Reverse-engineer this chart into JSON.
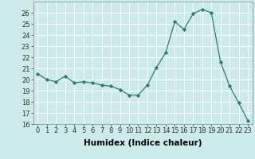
{
  "x": [
    0,
    1,
    2,
    3,
    4,
    5,
    6,
    7,
    8,
    9,
    10,
    11,
    12,
    13,
    14,
    15,
    16,
    17,
    18,
    19,
    20,
    21,
    22,
    23
  ],
  "y": [
    20.5,
    20.0,
    19.8,
    20.3,
    19.7,
    19.8,
    19.7,
    19.5,
    19.4,
    19.1,
    18.6,
    18.6,
    19.5,
    21.1,
    22.4,
    25.2,
    24.5,
    25.9,
    26.3,
    26.0,
    21.6,
    19.4,
    17.9,
    16.3
  ],
  "line_color": "#2e7d6e",
  "marker": "D",
  "marker_size": 2.2,
  "bg_color": "#cceaea",
  "grid_color": "#b0d8d8",
  "xlabel": "Humidex (Indice chaleur)",
  "ylim": [
    16,
    27
  ],
  "yticks": [
    16,
    17,
    18,
    19,
    20,
    21,
    22,
    23,
    24,
    25,
    26
  ],
  "xticks": [
    0,
    1,
    2,
    3,
    4,
    5,
    6,
    7,
    8,
    9,
    10,
    11,
    12,
    13,
    14,
    15,
    16,
    17,
    18,
    19,
    20,
    21,
    22,
    23
  ],
  "axis_fontsize": 6.5,
  "tick_fontsize": 6.0,
  "xlabel_fontsize": 7.5
}
